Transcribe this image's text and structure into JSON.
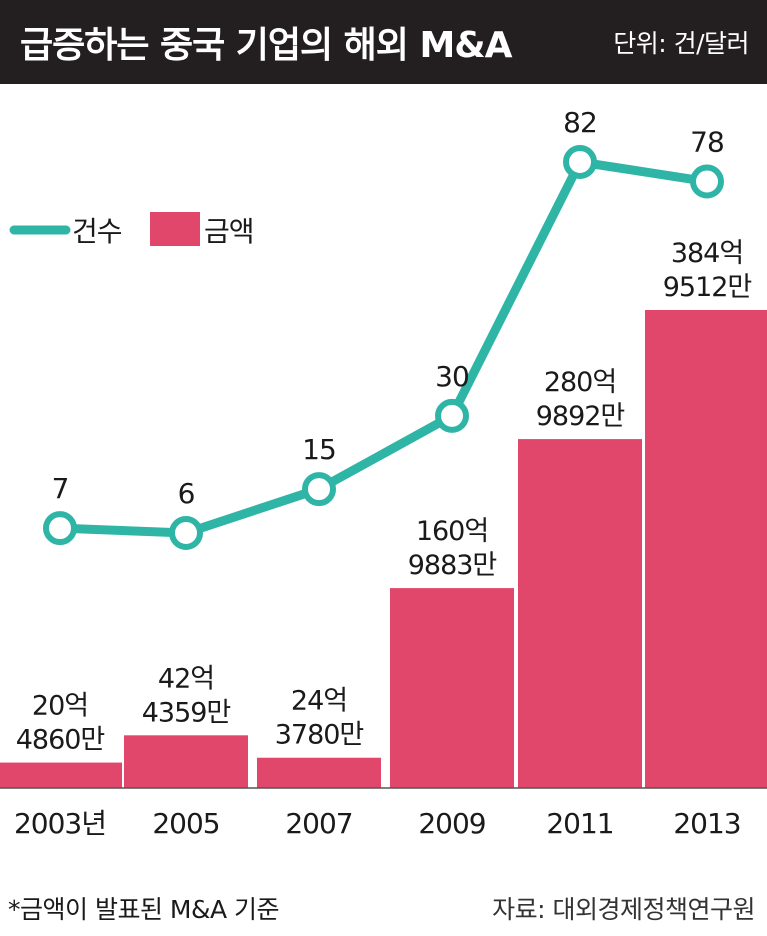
{
  "header": {
    "title": "급증하는 중국 기업의 해외 M&A",
    "unit": "단위: 건/달러"
  },
  "footer": {
    "note": "*금액이 발표된 M&A 기준",
    "source": "자료: 대외경제정책연구원"
  },
  "colors": {
    "line": "#2fb5a6",
    "bar": "#e0476a",
    "title_bg": "#231f20"
  },
  "chart_data": {
    "type": "bar",
    "categories": [
      "2003년",
      "2005",
      "2007",
      "2009",
      "2011",
      "2013"
    ],
    "series": [
      {
        "name": "금액",
        "type": "bar",
        "values": [
          2048600000,
          4243590000,
          2437800000,
          16098830000,
          28098920000,
          38495120000
        ],
        "labels": [
          [
            "20억",
            "4860만"
          ],
          [
            "42억",
            "4359만"
          ],
          [
            "24억",
            "3780만"
          ],
          [
            "160억",
            "9883만"
          ],
          [
            "280억",
            "9892만"
          ],
          [
            "384억",
            "9512만"
          ]
        ]
      },
      {
        "name": "건수",
        "type": "line",
        "values": [
          7,
          6,
          15,
          30,
          82,
          78
        ],
        "labels": [
          "7",
          "6",
          "15",
          "30",
          "82",
          "78"
        ]
      }
    ],
    "legend_position": "top-left",
    "grid": false
  }
}
